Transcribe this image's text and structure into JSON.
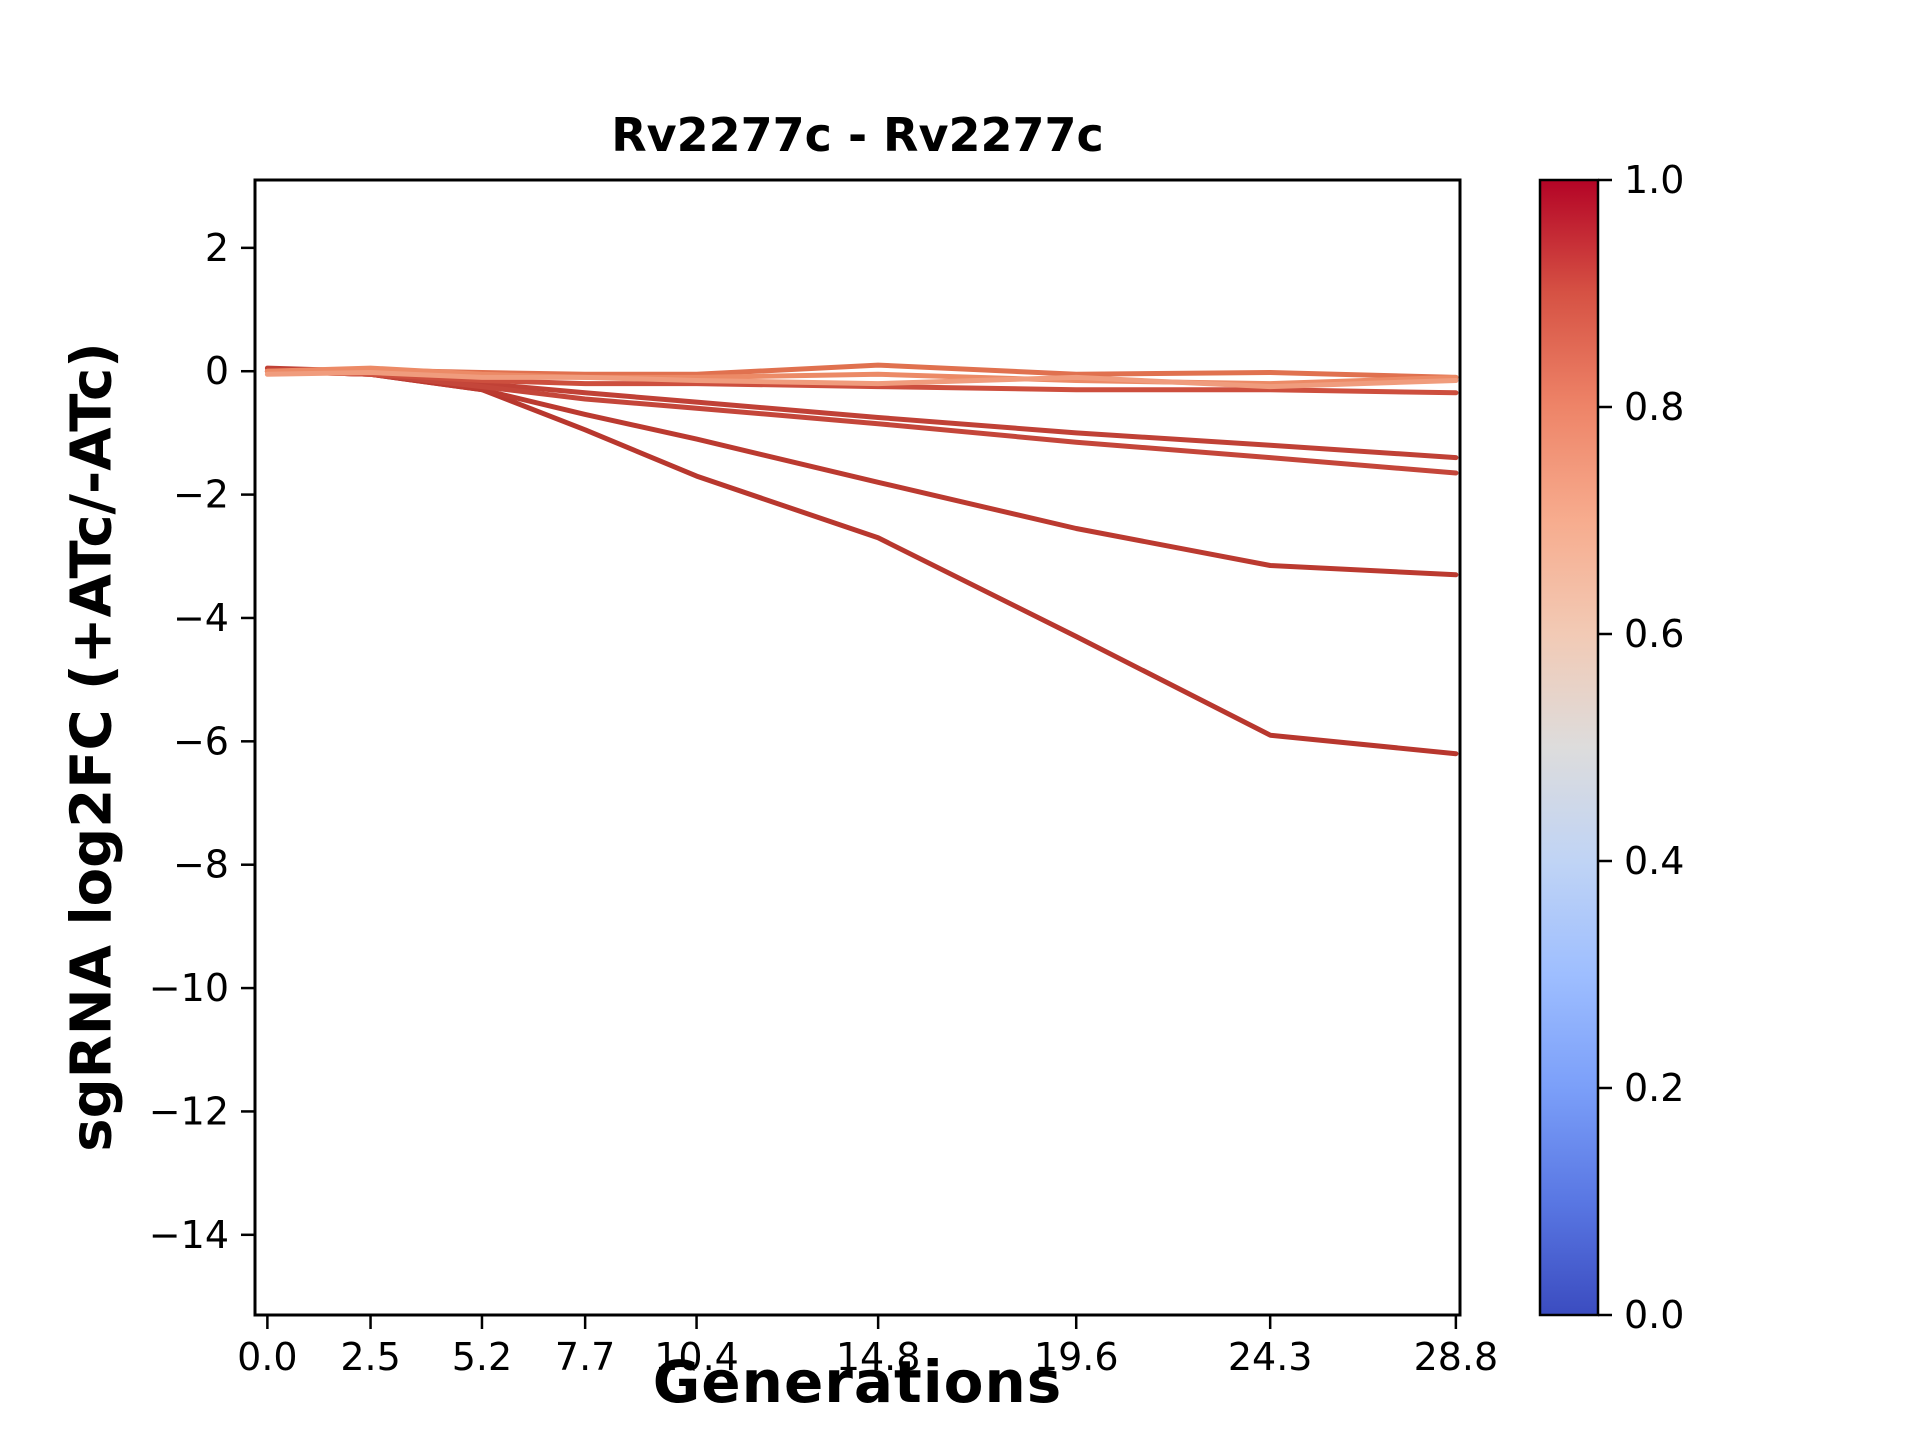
{
  "chart_data": {
    "type": "line",
    "title": "Rv2277c - Rv2277c",
    "xlabel": "Generations",
    "ylabel": "sgRNA log2FC (+ATc/-ATc)",
    "xlim": [
      -0.3,
      28.9
    ],
    "ylim": [
      -15.3,
      3.1
    ],
    "grid": false,
    "legend": "none (colorbar encodes line value)",
    "x": [
      0.0,
      2.5,
      5.2,
      7.7,
      10.4,
      14.8,
      19.6,
      24.3,
      28.8
    ],
    "xticks": [
      0.0,
      2.5,
      5.2,
      7.7,
      10.4,
      14.8,
      19.6,
      24.3,
      28.8
    ],
    "xtick_labels": [
      "0.0",
      "2.5",
      "5.2",
      "7.7",
      "10.4",
      "14.8",
      "19.6",
      "24.3",
      "28.8"
    ],
    "yticks": [
      2,
      0,
      -2,
      -4,
      -6,
      -8,
      -10,
      -12,
      -14
    ],
    "ytick_labels": [
      "2",
      "0",
      "−2",
      "−4",
      "−6",
      "−8",
      "−10",
      "−12",
      "−14"
    ],
    "series": [
      {
        "name": "line_1",
        "color": "#b8372e",
        "values": [
          0.0,
          -0.05,
          -0.3,
          -0.95,
          -1.7,
          -2.7,
          -4.3,
          -5.9,
          -6.2
        ]
      },
      {
        "name": "line_2",
        "color": "#bb3a30",
        "values": [
          0.0,
          -0.05,
          -0.3,
          -0.7,
          -1.1,
          -1.8,
          -2.55,
          -3.15,
          -3.3
        ]
      },
      {
        "name": "line_3",
        "color": "#c04136",
        "values": [
          0.05,
          0.0,
          -0.2,
          -0.35,
          -0.5,
          -0.75,
          -1.0,
          -1.2,
          -1.4
        ]
      },
      {
        "name": "line_4",
        "color": "#c4463a",
        "values": [
          0.0,
          -0.05,
          -0.25,
          -0.45,
          -0.6,
          -0.85,
          -1.15,
          -1.4,
          -1.65
        ]
      },
      {
        "name": "line_5",
        "color": "#cd4f3e",
        "values": [
          0.0,
          -0.05,
          -0.15,
          -0.2,
          -0.2,
          -0.25,
          -0.3,
          -0.3,
          -0.35
        ]
      },
      {
        "name": "line_6",
        "color": "#e0714f",
        "values": [
          0.0,
          0.02,
          -0.02,
          -0.05,
          -0.05,
          0.1,
          -0.05,
          -0.02,
          -0.1
        ]
      },
      {
        "name": "line_7",
        "color": "#ec8a66",
        "values": [
          0.0,
          0.05,
          -0.05,
          -0.1,
          -0.1,
          -0.05,
          -0.15,
          -0.2,
          -0.1
        ]
      },
      {
        "name": "line_8",
        "color": "#f09c7d",
        "values": [
          -0.05,
          -0.02,
          -0.1,
          -0.1,
          -0.15,
          -0.2,
          -0.1,
          -0.25,
          -0.15
        ]
      }
    ],
    "colorbar": {
      "min": 0.0,
      "max": 1.0,
      "ticks": [
        0.0,
        0.2,
        0.4,
        0.6,
        0.8,
        1.0
      ],
      "tick_labels": [
        "0.0",
        "0.2",
        "0.4",
        "0.6",
        "0.8",
        "1.0"
      ],
      "colormap": "coolwarm",
      "gradient_stops": [
        "#3b4cc0",
        "#5977e3",
        "#7b9ff9",
        "#9ebeff",
        "#c0d4f5",
        "#dddcdc",
        "#f2cab5",
        "#f7ac8e",
        "#ee8468",
        "#d65244",
        "#b40426"
      ]
    }
  }
}
